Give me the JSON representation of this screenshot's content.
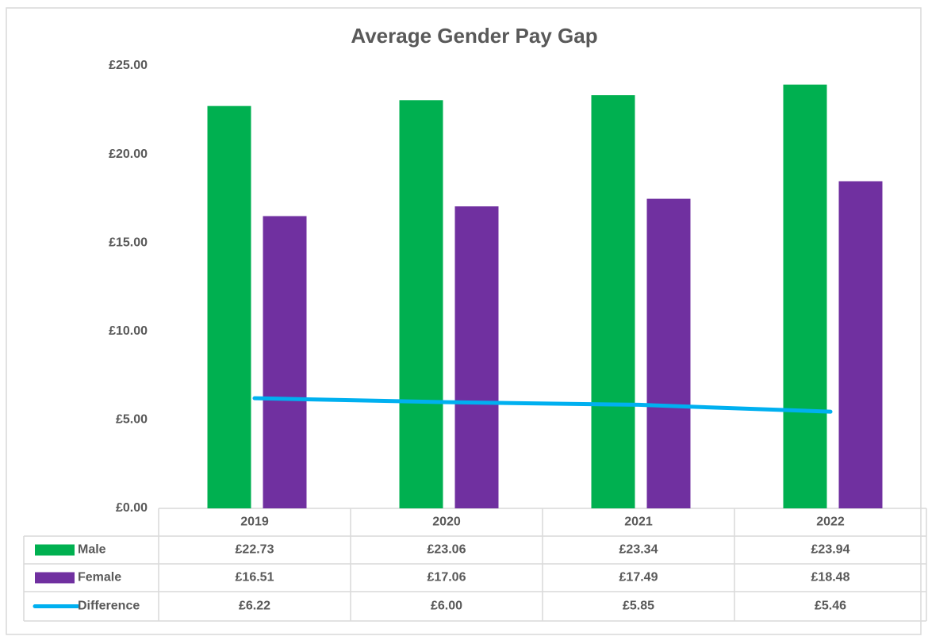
{
  "chart_data": {
    "type": "bar",
    "title": "Average Gender Pay Gap",
    "categories": [
      "2019",
      "2020",
      "2021",
      "2022"
    ],
    "series": [
      {
        "name": "Male",
        "type": "bar",
        "color": "#00b050",
        "values": [
          22.73,
          23.06,
          23.34,
          23.94
        ],
        "value_labels": [
          "£22.73",
          "£23.06",
          "£23.34",
          "£23.94"
        ]
      },
      {
        "name": "Female",
        "type": "bar",
        "color": "#7030a0",
        "values": [
          16.51,
          17.06,
          17.49,
          18.48
        ],
        "value_labels": [
          "£16.51",
          "£17.06",
          "£17.49",
          "£18.48"
        ]
      },
      {
        "name": "Difference",
        "type": "line",
        "color": "#00b0f0",
        "values": [
          6.22,
          6.0,
          5.85,
          5.46
        ],
        "value_labels": [
          "£6.22",
          "£6.00",
          "£5.85",
          "£5.46"
        ]
      }
    ],
    "ylim": [
      0,
      25
    ],
    "yticks": [
      {
        "value": 0,
        "label": "£0.00"
      },
      {
        "value": 5,
        "label": "£5.00"
      },
      {
        "value": 10,
        "label": "£10.00"
      },
      {
        "value": 15,
        "label": "£15.00"
      },
      {
        "value": 20,
        "label": "£20.00"
      },
      {
        "value": 25,
        "label": "£25.00"
      }
    ],
    "grid": false
  }
}
